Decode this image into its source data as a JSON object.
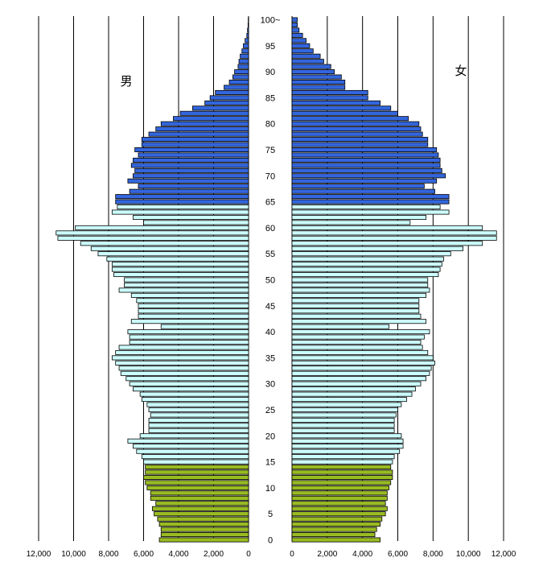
{
  "chart_data": {
    "type": "bar",
    "orientation": "horizontal-pyramid",
    "legend": {
      "male_label": "男",
      "female_label": "女"
    },
    "age_labels": [
      "0",
      "5",
      "10",
      "15",
      "20",
      "25",
      "30",
      "35",
      "40",
      "45",
      "50",
      "55",
      "60",
      "65",
      "70",
      "75",
      "80",
      "85",
      "90",
      "95",
      "100~"
    ],
    "x_ticks_male": [
      "12,000",
      "10,000",
      "8,000",
      "6,000",
      "4,000",
      "2,000",
      "0"
    ],
    "x_ticks_female": [
      "0",
      "2,000",
      "4,000",
      "6,000",
      "8,000",
      "10,000",
      "12,000"
    ],
    "xlim": [
      0,
      12000
    ],
    "colors": {
      "young": "#99bb22",
      "working": "#ccffff",
      "old": "#3366dd"
    },
    "ages": [
      0,
      1,
      2,
      3,
      4,
      5,
      6,
      7,
      8,
      9,
      10,
      11,
      12,
      13,
      14,
      15,
      16,
      17,
      18,
      19,
      20,
      21,
      22,
      23,
      24,
      25,
      26,
      27,
      28,
      29,
      30,
      31,
      32,
      33,
      34,
      35,
      36,
      37,
      38,
      39,
      40,
      41,
      42,
      43,
      44,
      45,
      46,
      47,
      48,
      49,
      50,
      51,
      52,
      53,
      54,
      55,
      56,
      57,
      58,
      59,
      60,
      61,
      62,
      63,
      64,
      65,
      66,
      67,
      68,
      69,
      70,
      71,
      72,
      73,
      74,
      75,
      76,
      77,
      78,
      79,
      80,
      81,
      82,
      83,
      84,
      85,
      86,
      87,
      88,
      89,
      90,
      91,
      92,
      93,
      94,
      95,
      96,
      97,
      98,
      99,
      100
    ],
    "series": [
      {
        "name": "男",
        "values": [
          5100,
          5000,
          5000,
          5100,
          5200,
          5400,
          5500,
          5300,
          5600,
          5600,
          5800,
          5900,
          6000,
          5900,
          5900,
          6000,
          6100,
          6400,
          6600,
          6900,
          6200,
          5700,
          5700,
          5700,
          5600,
          5700,
          5800,
          6100,
          6200,
          6600,
          6800,
          7000,
          7300,
          7400,
          7600,
          7800,
          7600,
          7400,
          6800,
          6800,
          6900,
          5000,
          6700,
          6300,
          6300,
          6300,
          6400,
          6700,
          7400,
          7100,
          7100,
          7700,
          7800,
          7800,
          8100,
          8600,
          9000,
          9600,
          10900,
          11000,
          9900,
          6000,
          6600,
          7800,
          7500,
          7600,
          7600,
          6800,
          6300,
          6900,
          6600,
          6500,
          6700,
          6600,
          6300,
          6500,
          6100,
          6100,
          5700,
          5300,
          5000,
          4300,
          3900,
          3200,
          2500,
          2200,
          1900,
          1400,
          1100,
          900,
          800,
          600,
          550,
          480,
          380,
          300,
          200,
          100,
          60,
          30,
          20
        ]
      },
      {
        "name": "女",
        "values": [
          5000,
          4700,
          4800,
          5000,
          5100,
          5300,
          5400,
          5300,
          5400,
          5400,
          5500,
          5600,
          5700,
          5700,
          5600,
          5700,
          5800,
          6100,
          6300,
          6300,
          6200,
          5800,
          5800,
          5800,
          5900,
          6000,
          6200,
          6500,
          6800,
          7000,
          7300,
          7600,
          7800,
          7900,
          8100,
          8000,
          7700,
          7400,
          7300,
          7500,
          7800,
          5500,
          7600,
          7300,
          7200,
          7200,
          7200,
          7600,
          7800,
          7700,
          7700,
          8300,
          8400,
          8500,
          8600,
          9000,
          9700,
          10800,
          11600,
          11600,
          10800,
          6700,
          7600,
          8900,
          8400,
          8900,
          8900,
          8100,
          7500,
          8200,
          8700,
          8500,
          8400,
          8400,
          8300,
          8200,
          7700,
          7700,
          7400,
          7300,
          7200,
          6600,
          6000,
          5600,
          5000,
          4300,
          4300,
          3000,
          3000,
          2800,
          2400,
          2200,
          1800,
          1600,
          1200,
          1000,
          800,
          600,
          400,
          300,
          300
        ]
      }
    ]
  }
}
